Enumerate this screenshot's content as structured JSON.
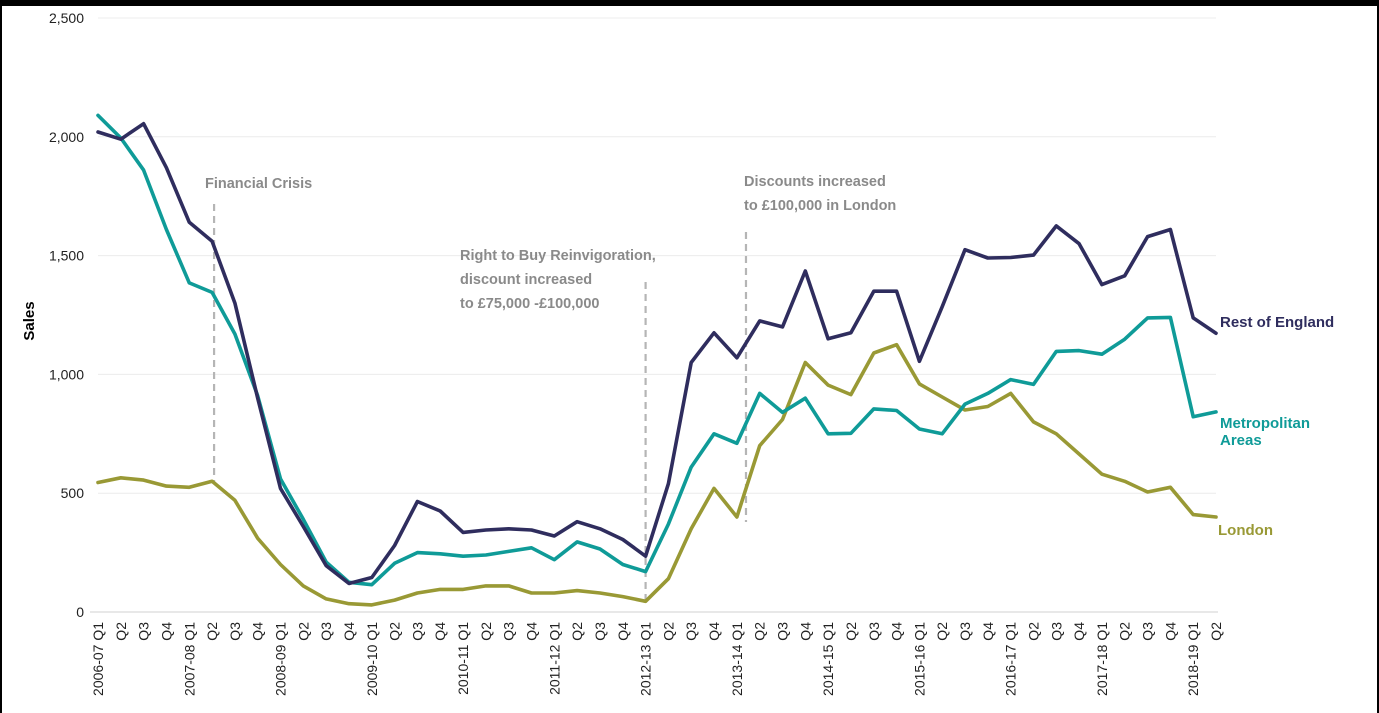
{
  "colors": {
    "rest_of_england": "#2f2d5e",
    "metropolitan_areas": "#0f9b98",
    "london": "#999935",
    "annotation": "#8a8a8a",
    "grid": "#ececec"
  },
  "chart_data": {
    "type": "line",
    "title": "",
    "xlabel": "",
    "ylabel": "Sales",
    "ylim": [
      0,
      2500
    ],
    "yticks": [
      0,
      500,
      1000,
      1500,
      2000,
      2500
    ],
    "ytick_labels": [
      "0",
      "500",
      "1,000",
      "1,500",
      "2,000",
      "2,500"
    ],
    "grid": true,
    "x": [
      "2006-07 Q1",
      "Q2",
      "Q3",
      "Q4",
      "2007-08 Q1",
      "Q2",
      "Q3",
      "Q4",
      "2008-09 Q1",
      "Q2",
      "Q3",
      "Q4",
      "2009-10 Q1",
      "Q2",
      "Q3",
      "Q4",
      "2010-11 Q1",
      "Q2",
      "Q3",
      "Q4",
      "2011-12 Q1",
      "Q2",
      "Q3",
      "Q4",
      "2012-13 Q1",
      "Q2",
      "Q3",
      "Q4",
      "2013-14 Q1",
      "Q2",
      "Q3",
      "Q4",
      "2014-15 Q1",
      "Q2",
      "Q3",
      "Q4",
      "2015-16 Q1",
      "Q2",
      "Q3",
      "Q4",
      "2016-17 Q1",
      "Q2",
      "Q3",
      "Q4",
      "2017-18 Q1",
      "Q2",
      "Q3",
      "Q4",
      "2018-19 Q1",
      "Q2"
    ],
    "series": [
      {
        "name": "Rest of England",
        "color": "#2f2d5e",
        "values": [
          2020,
          1990,
          2055,
          1870,
          1640,
          1560,
          1300,
          900,
          520,
          360,
          195,
          120,
          145,
          280,
          465,
          425,
          335,
          345,
          350,
          345,
          320,
          380,
          350,
          305,
          235,
          540,
          1050,
          1175,
          1070,
          1225,
          1200,
          1435,
          1150,
          1175,
          1350,
          1350,
          1055,
          1285,
          1525,
          1490,
          1492,
          1502,
          1625,
          1550,
          1378,
          1415,
          1580,
          1610,
          1238,
          1173
        ]
      },
      {
        "name": "Metropolitan\nAreas",
        "color": "#0f9b98",
        "values": [
          2090,
          1995,
          1860,
          1610,
          1385,
          1345,
          1170,
          910,
          560,
          390,
          210,
          125,
          115,
          205,
          250,
          245,
          235,
          240,
          255,
          270,
          220,
          295,
          265,
          200,
          170,
          370,
          610,
          750,
          710,
          920,
          840,
          900,
          750,
          752,
          855,
          848,
          770,
          750,
          875,
          920,
          978,
          958,
          1097,
          1100,
          1085,
          1148,
          1238,
          1240,
          822,
          842
        ]
      },
      {
        "name": "London",
        "color": "#999935",
        "values": [
          545,
          565,
          555,
          530,
          525,
          550,
          470,
          310,
          200,
          110,
          55,
          35,
          30,
          50,
          80,
          95,
          95,
          110,
          110,
          80,
          80,
          90,
          80,
          65,
          45,
          140,
          350,
          520,
          400,
          700,
          810,
          1050,
          955,
          915,
          1090,
          1125,
          960,
          905,
          850,
          865,
          920,
          800,
          750,
          665,
          580,
          550,
          505,
          525,
          410,
          400
        ]
      }
    ],
    "annotations": [
      {
        "lines": [
          "Financial Crisis"
        ],
        "x_index": 5
      },
      {
        "lines": [
          "Right to Buy Reinvigoration,",
          "discount increased",
          "to £75,000 -£100,000"
        ],
        "x_index": 24
      },
      {
        "lines": [
          "Discounts increased",
          "to £100,000 in London"
        ],
        "x_index": 28.4
      }
    ],
    "legend_placement": "right, labels at series line ends"
  }
}
